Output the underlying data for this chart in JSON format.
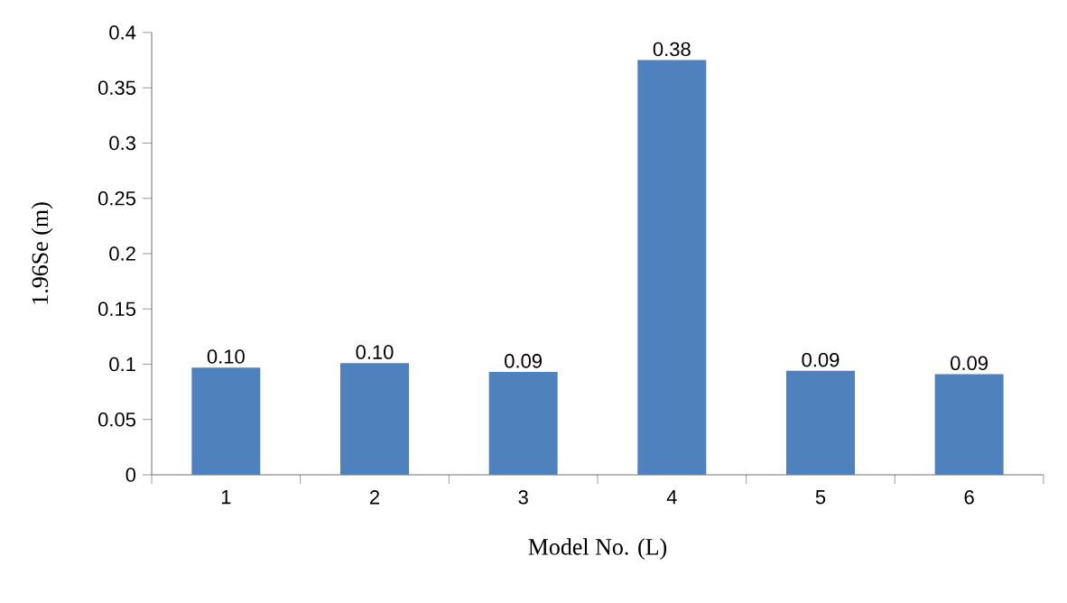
{
  "chart_data": {
    "type": "bar",
    "xlabel": "Model No. (L)",
    "ylabel": "1.96Se (m)",
    "categories": [
      "1",
      "2",
      "3",
      "4",
      "5",
      "6"
    ],
    "values": [
      0.097,
      0.101,
      0.093,
      0.375,
      0.094,
      0.091
    ],
    "value_labels": [
      "0.10",
      "0.10",
      "0.09",
      "0.38",
      "0.09",
      "0.09"
    ],
    "color": "#4f81bd",
    "ylim": [
      0,
      0.4
    ],
    "yticks": [
      0,
      0.05,
      0.1,
      0.15,
      0.2,
      0.25,
      0.3,
      0.35,
      0.4
    ],
    "grid": false
  }
}
